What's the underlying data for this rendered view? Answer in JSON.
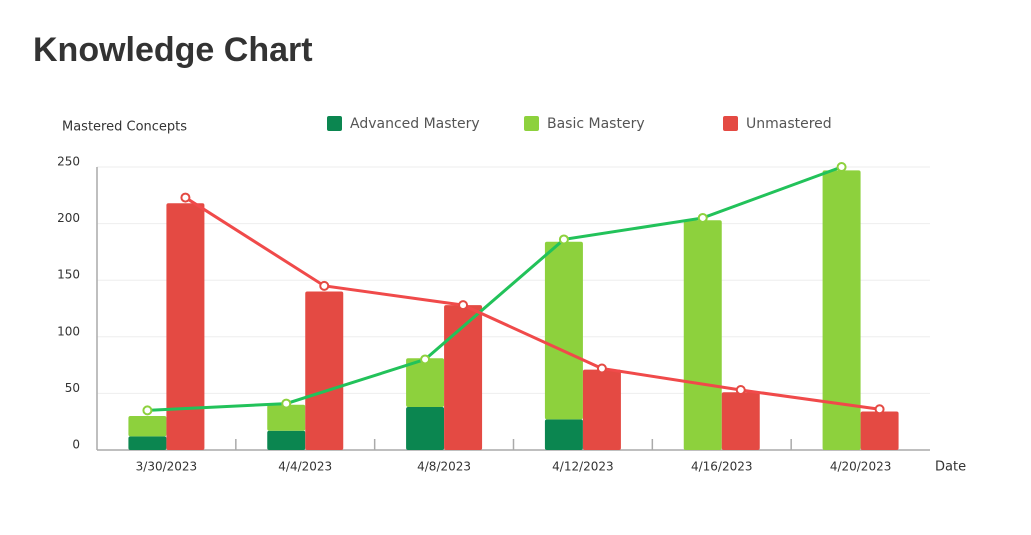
{
  "chart_data": {
    "type": "bar",
    "stacked": true,
    "title": "Knowledge Chart",
    "y_label": "Mastered Concepts",
    "x_label": "Date",
    "categories": [
      "3/30/2023",
      "4/4/2023",
      "4/8/2023",
      "4/12/2023",
      "4/16/2023",
      "4/20/2023"
    ],
    "series": [
      {
        "name": "Advanced Mastery",
        "color": "#0b8650",
        "stack": "a",
        "values": [
          12,
          17,
          38,
          27,
          0,
          0
        ]
      },
      {
        "name": "Basic Mastery",
        "color": "#8dd13d",
        "stack": "a",
        "values": [
          18,
          23,
          43,
          157,
          203,
          247
        ]
      },
      {
        "name": "Unmastered",
        "color": "#e44a43",
        "stack": "b",
        "values": [
          218,
          140,
          128,
          71,
          51,
          34
        ]
      }
    ],
    "lines": [
      {
        "color": "#22c25a",
        "marker_color": "#8dd13d",
        "stack": "a",
        "values": [
          35,
          41,
          80,
          186,
          205,
          250
        ]
      },
      {
        "color": "#f04a4a",
        "marker_color": "#e44a43",
        "stack": "b",
        "values": [
          223,
          145,
          128,
          72,
          53,
          36
        ]
      }
    ],
    "ylim": [
      0,
      250
    ],
    "yticks": [
      0,
      50,
      100,
      150,
      200,
      250
    ],
    "grid": true
  }
}
